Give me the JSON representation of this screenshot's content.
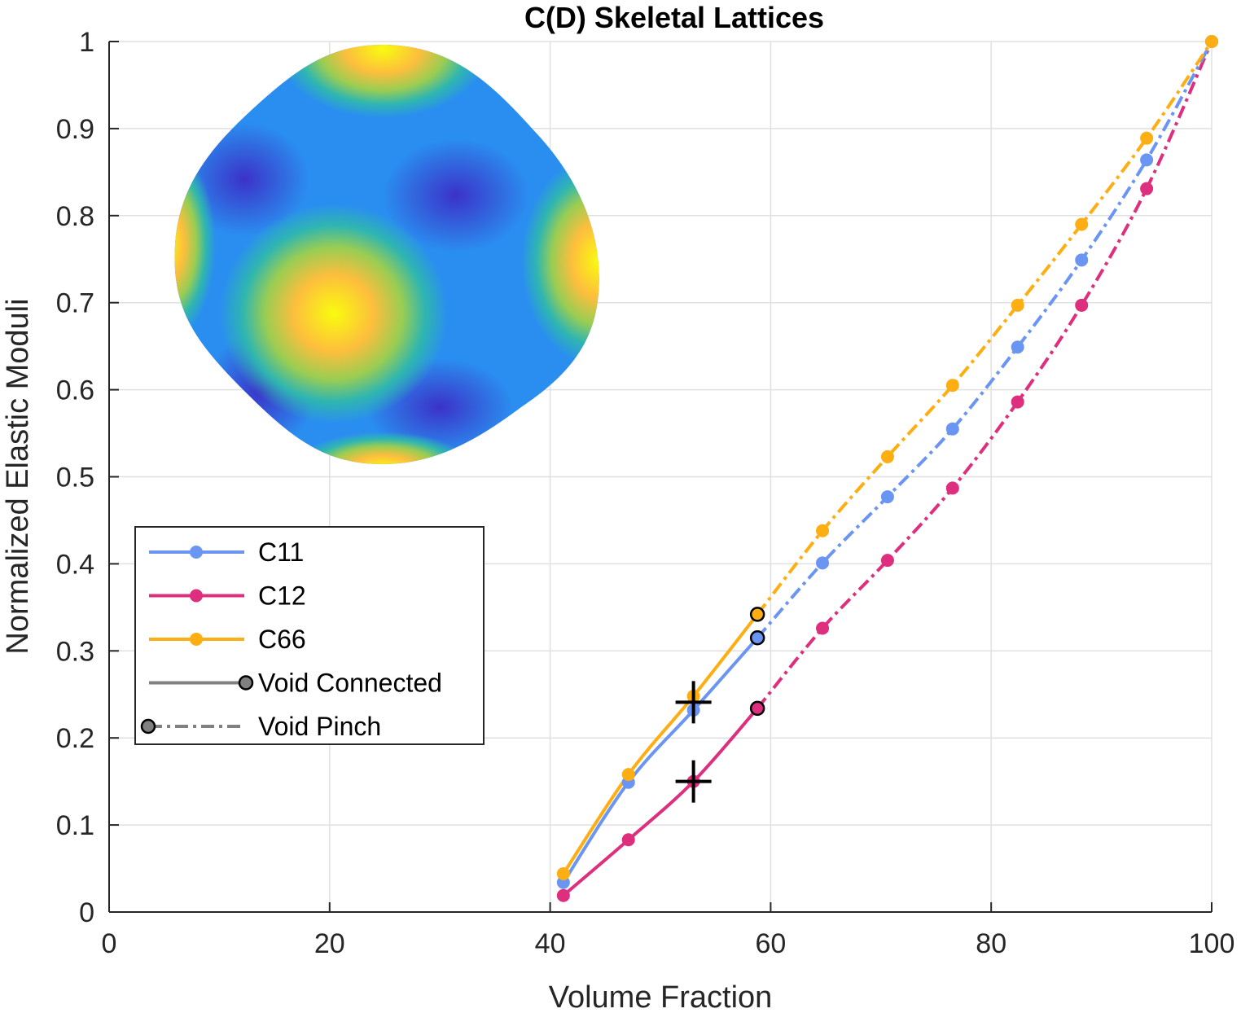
{
  "chart_data": {
    "type": "line",
    "title": "C(D) Skeletal Lattices",
    "xlabel": "Volume Fraction",
    "ylabel": "Normalized Elastic Moduli",
    "xlim": [
      0,
      100
    ],
    "ylim": [
      0,
      1
    ],
    "xticks": [
      "0",
      "20",
      "40",
      "60",
      "80",
      "100"
    ],
    "yticks": [
      "0",
      "0.1",
      "0.2",
      "0.3",
      "0.4",
      "0.5",
      "0.6",
      "0.7",
      "0.8",
      "0.9",
      "1"
    ],
    "grid": true,
    "legend_position": "left",
    "inset": "3D elastic surface plot",
    "series": [
      {
        "name": "C11",
        "color": "#6b95f2",
        "connected": {
          "x": [
            41.2,
            47.1,
            53.0,
            58.8
          ],
          "y": [
            0.034,
            0.149,
            0.232,
            0.315
          ]
        },
        "pinch": {
          "x": [
            58.8,
            64.7,
            70.6,
            76.5,
            82.4,
            88.2,
            94.1,
            100
          ],
          "y": [
            0.315,
            0.401,
            0.477,
            0.555,
            0.649,
            0.749,
            0.864,
            1.0
          ]
        }
      },
      {
        "name": "C12",
        "color": "#de2e7e",
        "connected": {
          "x": [
            41.2,
            47.1,
            53.0,
            58.8
          ],
          "y": [
            0.019,
            0.083,
            0.15,
            0.234
          ]
        },
        "pinch": {
          "x": [
            58.8,
            64.7,
            70.6,
            76.5,
            82.4,
            88.2,
            94.1,
            100
          ],
          "y": [
            0.234,
            0.326,
            0.404,
            0.487,
            0.586,
            0.697,
            0.831,
            1.0
          ]
        }
      },
      {
        "name": "C66",
        "color": "#fdae12",
        "connected": {
          "x": [
            41.2,
            47.1,
            53.0,
            58.8
          ],
          "y": [
            0.044,
            0.158,
            0.248,
            0.342
          ]
        },
        "pinch": {
          "x": [
            58.8,
            64.7,
            70.6,
            76.5,
            82.4,
            88.2,
            94.1,
            100
          ],
          "y": [
            0.342,
            0.438,
            0.523,
            0.605,
            0.697,
            0.79,
            0.889,
            1.0
          ]
        }
      }
    ],
    "markers_plus": [
      {
        "x": 53.0,
        "y": 0.241
      },
      {
        "x": 53.0,
        "y": 0.15
      }
    ],
    "void_transition_x": 58.8,
    "legend": [
      {
        "label": "C11",
        "color": "#6b95f2",
        "style": "solid-dot"
      },
      {
        "label": "C12",
        "color": "#de2e7e",
        "style": "solid-dot"
      },
      {
        "label": "C66",
        "color": "#fdae12",
        "style": "solid-dot"
      },
      {
        "label": "Void Connected",
        "color": "#808080",
        "style": "solid-endcircle"
      },
      {
        "label": "Void Pinch",
        "color": "#808080",
        "style": "dashed-startcircle"
      }
    ]
  }
}
